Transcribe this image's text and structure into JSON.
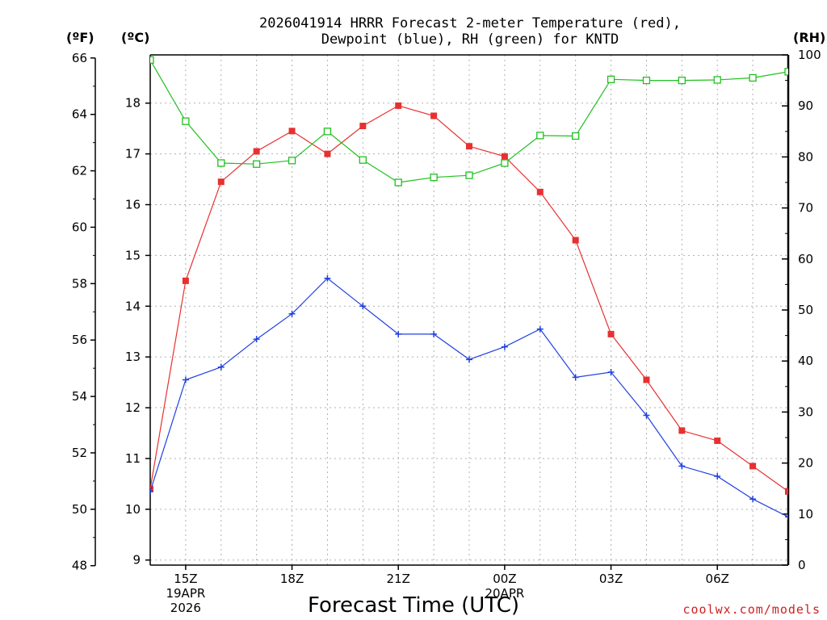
{
  "chart_data": {
    "type": "line",
    "title_line1": "2026041914 HRRR Forecast 2-meter Temperature (red),",
    "title_line2": "Dewpoint (blue), RH (green) for KNTD",
    "xlabel": "Forecast Time (UTC)",
    "credit": "coolwx.com/models",
    "y_left_f_label": "(ºF)",
    "y_left_c_label": "(ºC)",
    "y_right_label": "(RH)",
    "f_ticks": [
      "48",
      "50",
      "52",
      "54",
      "56",
      "58",
      "60",
      "62",
      "64",
      "66"
    ],
    "c_ticks": [
      "9",
      "10",
      "11",
      "12",
      "13",
      "14",
      "15",
      "16",
      "17",
      "18"
    ],
    "rh_ticks": [
      "0",
      "10",
      "20",
      "30",
      "40",
      "50",
      "60",
      "70",
      "80",
      "90",
      "100"
    ],
    "x_ticks": [
      {
        "hour": 15,
        "label": "15Z",
        "sub1": "19APR",
        "sub2": "2026"
      },
      {
        "hour": 18,
        "label": "18Z",
        "sub1": "",
        "sub2": ""
      },
      {
        "hour": 21,
        "label": "21Z",
        "sub1": "",
        "sub2": ""
      },
      {
        "hour": 24,
        "label": "00Z",
        "sub1": "20APR",
        "sub2": ""
      },
      {
        "hour": 27,
        "label": "03Z",
        "sub1": "",
        "sub2": ""
      },
      {
        "hour": 30,
        "label": "06Z",
        "sub1": "",
        "sub2": ""
      }
    ],
    "x_range_hours": [
      14,
      32
    ],
    "c_range": [
      8.9,
      18.95
    ],
    "rh_range": [
      0,
      100
    ],
    "hours": [
      14,
      15,
      16,
      17,
      18,
      19,
      20,
      21,
      22,
      23,
      24,
      25,
      26,
      27,
      28,
      29,
      30,
      31,
      32
    ],
    "series": [
      {
        "name": "Temperature",
        "unit": "C",
        "color": "#e83030",
        "marker": "filled-square",
        "values": [
          10.4,
          14.5,
          16.45,
          17.05,
          17.45,
          17.0,
          17.55,
          17.95,
          17.75,
          17.15,
          16.95,
          16.25,
          15.3,
          13.45,
          12.55,
          11.55,
          11.35,
          10.85,
          10.35
        ]
      },
      {
        "name": "Dewpoint",
        "unit": "C",
        "color": "#2040e0",
        "marker": "plus",
        "values": [
          10.35,
          12.55,
          12.8,
          13.35,
          13.85,
          14.55,
          14.0,
          13.45,
          13.45,
          12.95,
          13.2,
          13.55,
          12.6,
          12.7,
          11.85,
          10.85,
          10.65,
          10.2,
          9.85
        ]
      },
      {
        "name": "RH",
        "unit": "%",
        "color": "#20c020",
        "marker": "open-square",
        "values": [
          99,
          87,
          78.8,
          78.6,
          79.3,
          85,
          79.4,
          75,
          76,
          76.4,
          78.8,
          84.2,
          84.1,
          95.2,
          95,
          95,
          95.1,
          95.5,
          96.7
        ]
      }
    ]
  }
}
